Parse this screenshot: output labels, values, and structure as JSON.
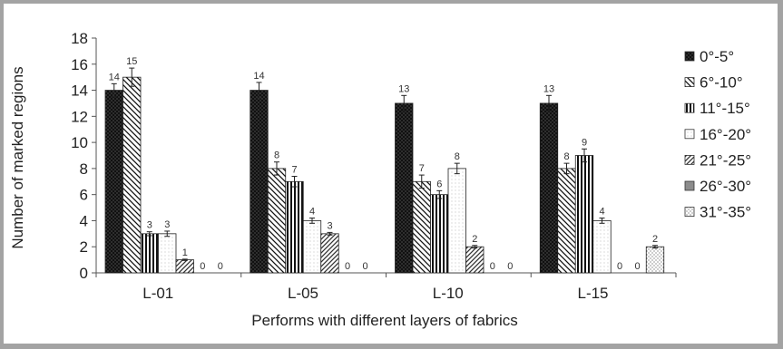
{
  "chart_data": {
    "type": "bar",
    "xlabel": "Performs with different layers of fabrics",
    "ylabel": "Number of marked regions",
    "ylim": [
      0,
      18
    ],
    "yticks": [
      0,
      2,
      4,
      6,
      8,
      10,
      12,
      14,
      16,
      18
    ],
    "categories": [
      "L-01",
      "L-05",
      "L-10",
      "L-15"
    ],
    "series": [
      {
        "name": "0°-5°",
        "values": [
          14,
          14,
          13,
          13
        ],
        "error": [
          0.5,
          0.6,
          0.6,
          0.6
        ],
        "pattern": "dots-dark"
      },
      {
        "name": "6°-10°",
        "values": [
          15,
          8,
          7,
          8
        ],
        "error": [
          0.7,
          0.5,
          0.5,
          0.4
        ],
        "pattern": "diag-back"
      },
      {
        "name": "11°-15°",
        "values": [
          3,
          7,
          6,
          9
        ],
        "error": [
          0.15,
          0.4,
          0.3,
          0.5
        ],
        "pattern": "vertical"
      },
      {
        "name": "16°-20°",
        "values": [
          3,
          4,
          8,
          4
        ],
        "error": [
          0.2,
          0.2,
          0.4,
          0.2
        ],
        "pattern": "dots-light"
      },
      {
        "name": "21°-25°",
        "values": [
          1,
          3,
          2,
          0
        ],
        "error": [
          0.05,
          0.1,
          0.1,
          0
        ],
        "pattern": "diag-fwd"
      },
      {
        "name": "26°-30°",
        "values": [
          0,
          0,
          0,
          0
        ],
        "error": [
          0,
          0,
          0,
          0
        ],
        "pattern": "gray"
      },
      {
        "name": "31°-35°",
        "values": [
          0,
          0,
          0,
          2
        ],
        "error": [
          0,
          0,
          0,
          0.1
        ],
        "pattern": "dots-medium"
      }
    ],
    "legend_position": "right",
    "grid": false
  }
}
